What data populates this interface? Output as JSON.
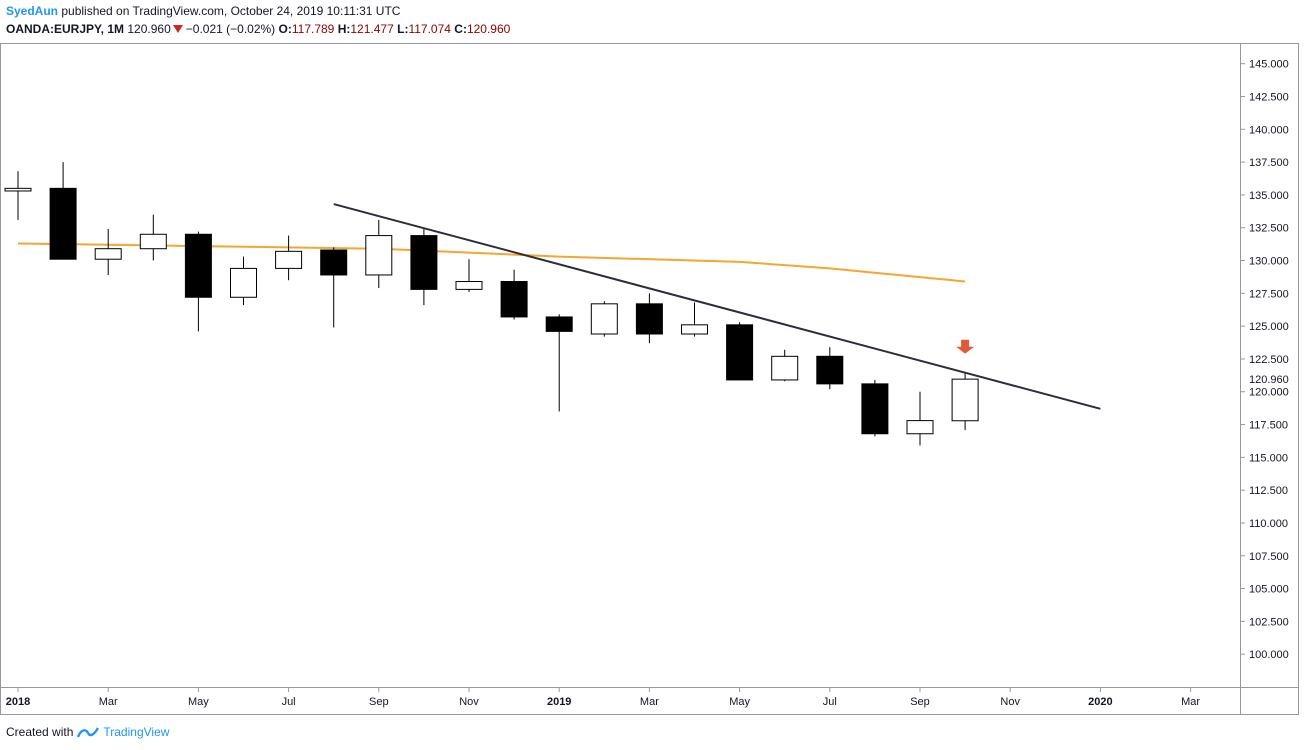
{
  "header": {
    "author": "SyedAun",
    "published_text": " published on TradingView.com, October 24, 2019 10:11:31 UTC",
    "symbol": "OANDA:EURJPY, 1M",
    "price": "120.960",
    "change": "−0.021 (−0.02%)",
    "o_label": "O:",
    "o_value": "117.789",
    "h_label": "H:",
    "h_value": "121.477",
    "l_label": "L:",
    "l_value": "117.074",
    "c_label": "C:",
    "c_value": "120.960"
  },
  "footer": {
    "created_with": "Created with",
    "brand": "TradingView"
  },
  "colors": {
    "up_fill": "#ffffff",
    "down_fill": "#000000",
    "wick": "#000000",
    "ma": "#f7a531",
    "trendline": "#2a2e39",
    "arrow": "#e05a3a",
    "last_price_bg": "#ffffff"
  },
  "chart_data": {
    "type": "candlestick",
    "interval": "1M",
    "ylim": [
      97.5,
      146.5
    ],
    "y_ticks": [
      100,
      102.5,
      105,
      107.5,
      110,
      112.5,
      115,
      117.5,
      120,
      122.5,
      125,
      127.5,
      130,
      132.5,
      135,
      137.5,
      140,
      142.5,
      145
    ],
    "y_tick_labels": [
      "100.000",
      "102.500",
      "105.000",
      "107.500",
      "110.000",
      "112.500",
      "115.000",
      "117.500",
      "120.000",
      "122.500",
      "125.000",
      "127.500",
      "130.000",
      "132.500",
      "135.000",
      "137.500",
      "140.000",
      "142.500",
      "145.000"
    ],
    "x_range": [
      "2018-01",
      "2020-04"
    ],
    "x_ticks": [
      {
        "date": "2018-01",
        "label": "2018",
        "bold": true
      },
      {
        "date": "2018-03",
        "label": "Mar"
      },
      {
        "date": "2018-05",
        "label": "May"
      },
      {
        "date": "2018-07",
        "label": "Jul"
      },
      {
        "date": "2018-09",
        "label": "Sep"
      },
      {
        "date": "2018-11",
        "label": "Nov"
      },
      {
        "date": "2019-01",
        "label": "2019",
        "bold": true
      },
      {
        "date": "2019-03",
        "label": "Mar"
      },
      {
        "date": "2019-05",
        "label": "May"
      },
      {
        "date": "2019-07",
        "label": "Jul"
      },
      {
        "date": "2019-09",
        "label": "Sep"
      },
      {
        "date": "2019-11",
        "label": "Nov"
      },
      {
        "date": "2020-01",
        "label": "2020",
        "bold": true
      },
      {
        "date": "2020-03",
        "label": "Mar"
      }
    ],
    "candles": [
      {
        "date": "2018-01",
        "o": 135.3,
        "h": 136.8,
        "l": 133.1,
        "c": 135.5
      },
      {
        "date": "2018-02",
        "o": 135.5,
        "h": 137.5,
        "l": 130.1,
        "c": 130.1
      },
      {
        "date": "2018-03",
        "o": 130.1,
        "h": 132.4,
        "l": 128.9,
        "c": 130.9
      },
      {
        "date": "2018-04",
        "o": 130.9,
        "h": 133.5,
        "l": 130.0,
        "c": 132.0
      },
      {
        "date": "2018-05",
        "o": 132.0,
        "h": 132.2,
        "l": 124.6,
        "c": 127.2
      },
      {
        "date": "2018-06",
        "o": 127.2,
        "h": 130.3,
        "l": 126.6,
        "c": 129.4
      },
      {
        "date": "2018-07",
        "o": 129.4,
        "h": 131.9,
        "l": 128.5,
        "c": 130.7
      },
      {
        "date": "2018-08",
        "o": 130.8,
        "h": 131.0,
        "l": 124.9,
        "c": 128.9
      },
      {
        "date": "2018-09",
        "o": 128.9,
        "h": 133.1,
        "l": 127.9,
        "c": 131.9
      },
      {
        "date": "2018-10",
        "o": 131.9,
        "h": 132.5,
        "l": 126.6,
        "c": 127.8
      },
      {
        "date": "2018-11",
        "o": 127.8,
        "h": 130.1,
        "l": 127.6,
        "c": 128.4
      },
      {
        "date": "2018-12",
        "o": 128.4,
        "h": 129.3,
        "l": 125.5,
        "c": 125.7
      },
      {
        "date": "2019-01",
        "o": 125.7,
        "h": 125.9,
        "l": 118.5,
        "c": 124.6
      },
      {
        "date": "2019-02",
        "o": 124.4,
        "h": 126.9,
        "l": 124.2,
        "c": 126.7
      },
      {
        "date": "2019-03",
        "o": 126.7,
        "h": 127.5,
        "l": 123.7,
        "c": 124.4
      },
      {
        "date": "2019-04",
        "o": 124.4,
        "h": 126.8,
        "l": 124.2,
        "c": 125.1
      },
      {
        "date": "2019-05",
        "o": 125.1,
        "h": 125.3,
        "l": 120.9,
        "c": 120.9
      },
      {
        "date": "2019-06",
        "o": 120.9,
        "h": 123.2,
        "l": 120.8,
        "c": 122.7
      },
      {
        "date": "2019-07",
        "o": 122.7,
        "h": 123.4,
        "l": 120.2,
        "c": 120.6
      },
      {
        "date": "2019-08",
        "o": 120.6,
        "h": 120.9,
        "l": 116.6,
        "c": 116.8
      },
      {
        "date": "2019-09",
        "o": 116.8,
        "h": 120.0,
        "l": 115.9,
        "c": 117.8
      },
      {
        "date": "2019-10",
        "o": 117.789,
        "h": 121.477,
        "l": 117.074,
        "c": 120.96
      }
    ],
    "moving_average": [
      {
        "date": "2018-01",
        "v": 131.3
      },
      {
        "date": "2018-05",
        "v": 131.1
      },
      {
        "date": "2018-09",
        "v": 130.9
      },
      {
        "date": "2019-01",
        "v": 130.3
      },
      {
        "date": "2019-05",
        "v": 129.9
      },
      {
        "date": "2019-07",
        "v": 129.4
      },
      {
        "date": "2019-10",
        "v": 128.4
      }
    ],
    "trendline": [
      {
        "date": "2018-08",
        "v": 134.3
      },
      {
        "date": "2020-01",
        "v": 118.7
      }
    ],
    "signal_arrow": {
      "date": "2019-10",
      "direction": "down",
      "v": 122.9
    },
    "last_price": {
      "value": 120.96,
      "label": "120.960"
    }
  }
}
